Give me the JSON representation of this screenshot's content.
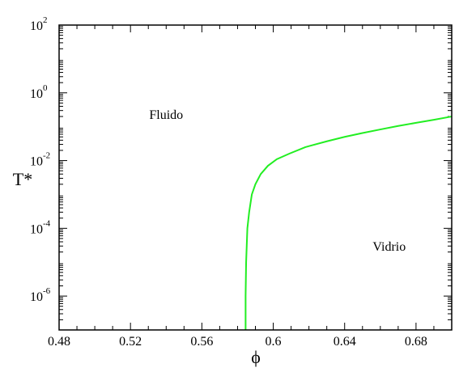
{
  "chart_data": {
    "type": "line",
    "title": "",
    "xlabel": "ϕ",
    "ylabel": "T*",
    "xlim": [
      0.48,
      0.7
    ],
    "ylim_log10": [
      -7,
      2
    ],
    "y_scale": "log",
    "x_ticks": [
      {
        "value": 0.48,
        "label": "0.48"
      },
      {
        "value": 0.52,
        "label": "0.52"
      },
      {
        "value": 0.56,
        "label": "0.56"
      },
      {
        "value": 0.6,
        "label": "0.6"
      },
      {
        "value": 0.64,
        "label": "0.64"
      },
      {
        "value": 0.68,
        "label": "0.68"
      }
    ],
    "y_ticks": [
      {
        "log10": 2,
        "base": "10",
        "exp": "2"
      },
      {
        "log10": 0,
        "base": "10",
        "exp": "0"
      },
      {
        "log10": -2,
        "base": "10",
        "exp": "-2"
      },
      {
        "log10": -4,
        "base": "10",
        "exp": "-4"
      },
      {
        "log10": -6,
        "base": "10",
        "exp": "-6"
      }
    ],
    "grid": false,
    "series": [
      {
        "color": "#22ee22",
        "points": [
          {
            "x": 0.5845,
            "y": 1e-07
          },
          {
            "x": 0.5845,
            "y": 1e-06
          },
          {
            "x": 0.5848,
            "y": 1e-05
          },
          {
            "x": 0.5855,
            "y": 0.0001
          },
          {
            "x": 0.5865,
            "y": 0.0003
          },
          {
            "x": 0.588,
            "y": 0.001
          },
          {
            "x": 0.59,
            "y": 0.002
          },
          {
            "x": 0.593,
            "y": 0.004
          },
          {
            "x": 0.597,
            "y": 0.007
          },
          {
            "x": 0.602,
            "y": 0.011
          },
          {
            "x": 0.609,
            "y": 0.016
          },
          {
            "x": 0.618,
            "y": 0.025
          },
          {
            "x": 0.63,
            "y": 0.037
          },
          {
            "x": 0.64,
            "y": 0.05
          },
          {
            "x": 0.65,
            "y": 0.065
          },
          {
            "x": 0.66,
            "y": 0.083
          },
          {
            "x": 0.67,
            "y": 0.105
          },
          {
            "x": 0.68,
            "y": 0.13
          },
          {
            "x": 0.69,
            "y": 0.16
          },
          {
            "x": 0.7,
            "y": 0.2
          }
        ]
      }
    ],
    "annotations": [
      {
        "text": "Fluido",
        "x": 0.54,
        "y": 0.17
      },
      {
        "text": "Vidrio",
        "x": 0.665,
        "y": 2.2e-05
      }
    ]
  }
}
